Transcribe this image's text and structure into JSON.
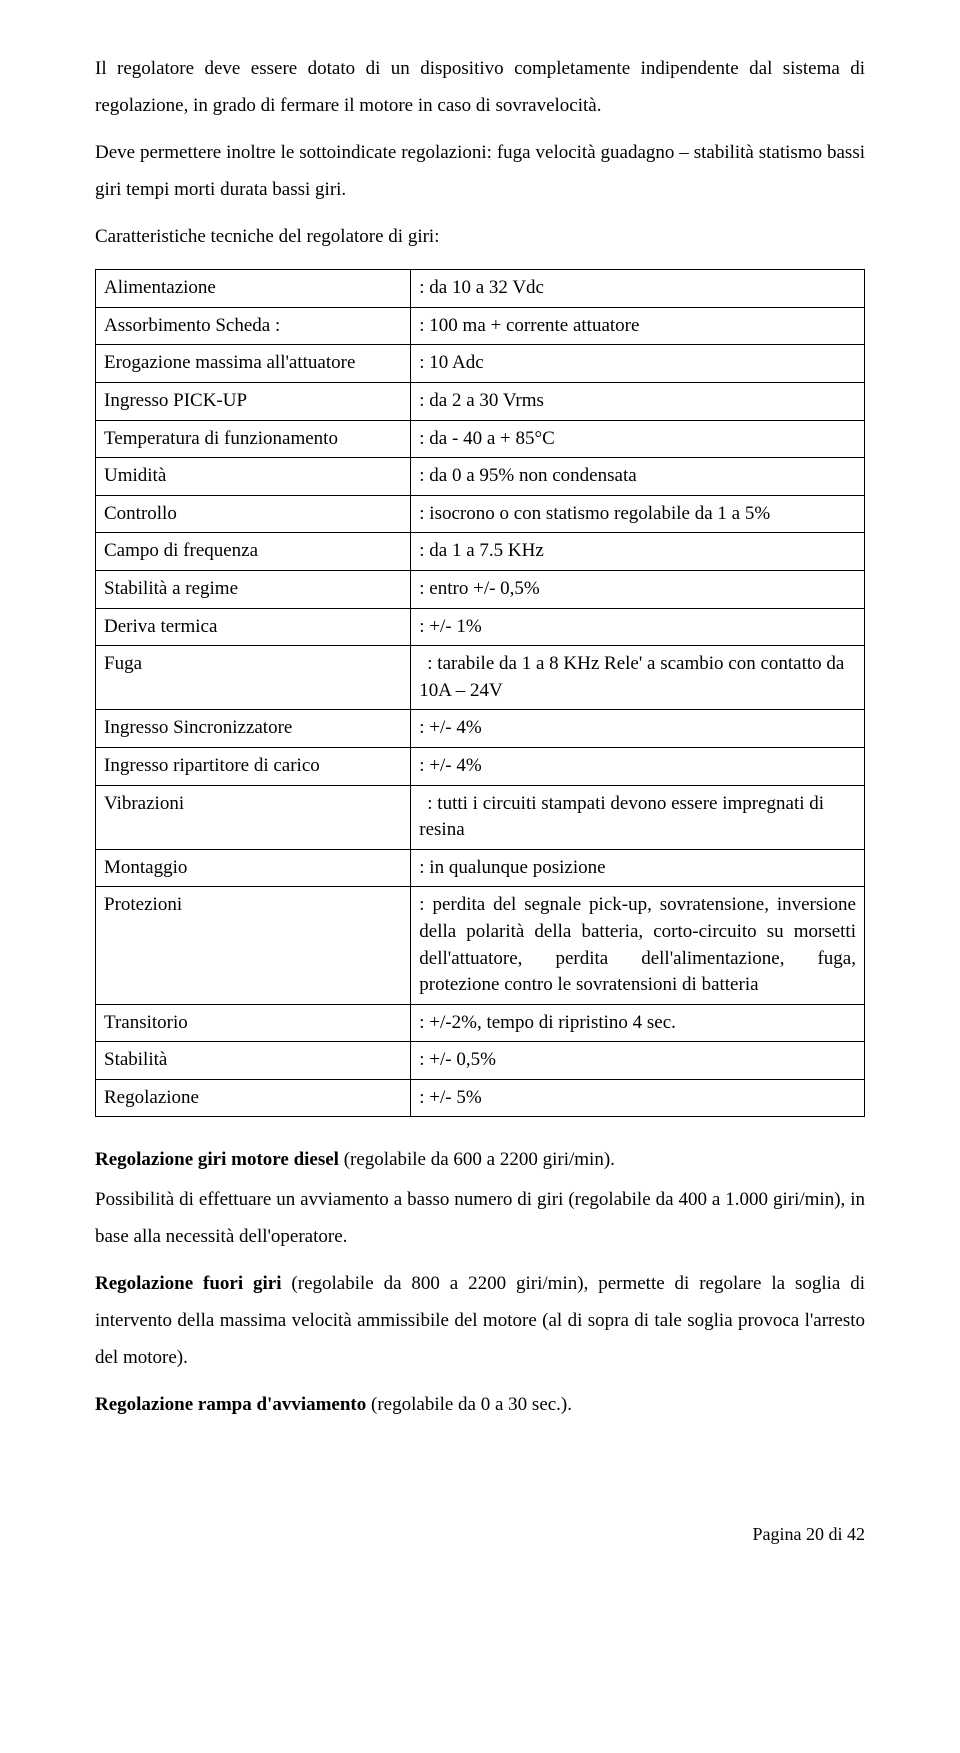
{
  "intro": {
    "p1": "Il regolatore deve essere dotato di un dispositivo completamente indipendente dal sistema di regolazione, in grado di fermare il motore in caso di sovravelocità.",
    "p2": "Deve permettere inoltre le sottoindicate regolazioni: fuga velocità guadagno – stabilità statismo bassi giri tempi morti durata bassi giri.",
    "p3": "Caratteristiche tecniche del regolatore di giri:"
  },
  "spec": {
    "r0": {
      "label": "Alimentazione",
      "value": ": da 10 a 32 Vdc"
    },
    "r1": {
      "label": "Assorbimento Scheda  :",
      "value": ": 100 ma + corrente attuatore"
    },
    "r2": {
      "label": "Erogazione massima all'attuatore",
      "value": ": 10 Adc"
    },
    "r3": {
      "label": "Ingresso PICK-UP",
      "value": ": da 2 a 30 Vrms"
    },
    "r4": {
      "label": "Temperatura di funzionamento",
      "value": ": da - 40 a + 85°C"
    },
    "r5": {
      "label": "Umidità",
      "value": ": da 0 a 95% non condensata"
    },
    "r6": {
      "label": "Controllo",
      "value": ": isocrono o con statismo regolabile da 1 a 5%"
    },
    "r7": {
      "label": "Campo di frequenza",
      "value": ": da 1 a 7.5 KHz"
    },
    "r8": {
      "label": "Stabilità a regime",
      "value": ": entro +/- 0,5%"
    },
    "r9": {
      "label": "Deriva termica",
      "value": ":  +/- 1%"
    },
    "r10": {
      "label": "Fuga",
      "value": ": tarabile da 1 a 8 KHz Rele' a scambio con contatto da 10A – 24V"
    },
    "r11": {
      "label": "Ingresso Sincronizzatore",
      "value": ":  +/- 4%"
    },
    "r12": {
      "label": "Ingresso ripartitore di carico",
      "value": ":  +/- 4%"
    },
    "r13": {
      "label": "Vibrazioni",
      "value": ": tutti i circuiti stampati devono essere impregnati di resina"
    },
    "r14": {
      "label": "Montaggio",
      "value": ": in qualunque posizione"
    },
    "r15": {
      "label": "Protezioni",
      "value": ": perdita del segnale pick-up, sovratensione, inversione della polarità della batteria, corto-circuito su morsetti dell'attuatore, perdita dell'alimentazione, fuga, protezione contro le sovratensioni di batteria"
    },
    "r16": {
      "label": "Transitorio",
      "value": ":  +/-2%, tempo di ripristino 4 sec."
    },
    "r17": {
      "label": "Stabilità",
      "value": ":   +/- 0,5%"
    },
    "r18": {
      "label": "Regolazione",
      "value": ":  +/- 5%"
    }
  },
  "outro": {
    "l1a": "Regolazione giri motore diesel",
    "l1b": " (regolabile da 600 a 2200 giri/min).",
    "l2": "Possibilità di effettuare un avviamento a basso numero di giri (regolabile da 400 a 1.000 giri/min), in base alla necessità dell'operatore.",
    "l3a": "Regolazione fuori giri",
    "l3b": " (regolabile da 800 a 2200 giri/min), permette di regolare la soglia di intervento della massima velocità ammissibile del motore (al di sopra di tale soglia provoca l'arresto del motore).",
    "l4a": "Regolazione rampa d'avviamento",
    "l4b": " (regolabile da 0 a 30 sec.)."
  },
  "footer": "Pagina 20 di 42"
}
